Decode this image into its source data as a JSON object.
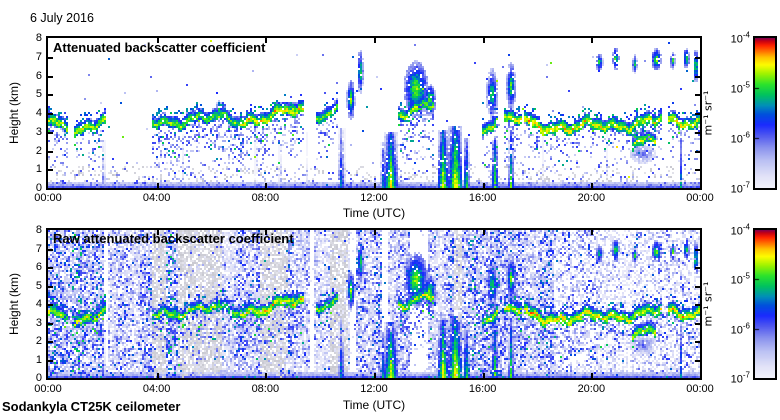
{
  "header": {
    "date_label": "6 July 2016"
  },
  "footer": {
    "instrument_label": "Sodankyla CT25K ceilometer"
  },
  "colors": {
    "axis": "#000000",
    "background": "#ffffff",
    "colormap_stops": [
      [
        0.0,
        "#f4f4fc"
      ],
      [
        0.08,
        "#e2e3f8"
      ],
      [
        0.18,
        "#bcc2f4"
      ],
      [
        0.27,
        "#8a92ee"
      ],
      [
        0.35,
        "#5058f0"
      ],
      [
        0.42,
        "#1b2bff"
      ],
      [
        0.49,
        "#0050dd"
      ],
      [
        0.55,
        "#0090b8"
      ],
      [
        0.62,
        "#00c35f"
      ],
      [
        0.69,
        "#2ce32c"
      ],
      [
        0.76,
        "#9ef300"
      ],
      [
        0.82,
        "#fdfd00"
      ],
      [
        0.87,
        "#ffc400"
      ],
      [
        0.91,
        "#ff7400"
      ],
      [
        0.95,
        "#ff2400"
      ],
      [
        0.98,
        "#c60014"
      ],
      [
        1.0,
        "#7a0055"
      ]
    ]
  },
  "chart_data": [
    {
      "type": "heatmap",
      "title": "Attenuated backscatter coefficient",
      "xlabel": "Time (UTC)",
      "ylabel": "Height (km)",
      "x_ticks": [
        "00:00",
        "04:00",
        "08:00",
        "12:00",
        "16:00",
        "20:00",
        "00:00"
      ],
      "x_tick_hours": [
        0,
        4,
        8,
        12,
        16,
        20,
        24
      ],
      "x_range_hours": [
        0,
        24
      ],
      "y_ticks": [
        0,
        1,
        2,
        3,
        4,
        5,
        6,
        7,
        8
      ],
      "ylim": [
        0,
        8
      ],
      "grid": false,
      "colorbar": {
        "scale": "log",
        "base": "10",
        "exponents": [
          "-4",
          "-5",
          "-6",
          "-7"
        ],
        "log_range": [
          -7,
          -4
        ],
        "unit": "m⁻¹ sr⁻¹",
        "position": "right"
      },
      "features": {
        "boundary_layer": {
          "solid_top_km": 0.32,
          "speckle_top_km": 1.6
        },
        "cloud_segments": [
          {
            "t0": 0.0,
            "t1": 0.75,
            "h0": 3.4,
            "h1": 2.9,
            "peak": -4.3,
            "virga": 2.6,
            "vp": 0.3
          },
          {
            "t0": 0.95,
            "t1": 2.15,
            "h0": 2.55,
            "h1": 3.85,
            "peak": -4.3,
            "virga": 2.4,
            "vp": 0.3
          },
          {
            "t0": 3.85,
            "t1": 5.2,
            "h0": 3.3,
            "h1": 3.6,
            "peak": -4.45,
            "virga": 2.8,
            "vp": 0.38
          },
          {
            "t0": 5.2,
            "t1": 7.1,
            "h0": 3.6,
            "h1": 3.45,
            "peak": -4.5,
            "virga": 2.9,
            "vp": 0.4
          },
          {
            "t0": 7.1,
            "t1": 9.45,
            "h0": 3.5,
            "h1": 3.95,
            "peak": -4.2,
            "virga": 3.0,
            "vp": 0.4
          },
          {
            "t0": 9.9,
            "t1": 10.7,
            "h0": 3.85,
            "h1": 4.15,
            "peak": -4.5,
            "virga": 2.2,
            "vp": 0.3
          },
          {
            "t0": 12.9,
            "t1": 14.2,
            "h0": 3.95,
            "h1": 4.25,
            "peak": -4.35,
            "virga": 3.2,
            "vp": 0.32
          },
          {
            "t0": 16.0,
            "t1": 16.6,
            "h0": 3.1,
            "h1": 3.4,
            "peak": -4.4,
            "virga": 2.6,
            "vp": 0.33
          },
          {
            "t0": 16.8,
            "t1": 17.45,
            "h0": 3.4,
            "h1": 3.5,
            "peak": -4.25,
            "virga": 2.9,
            "vp": 0.33
          },
          {
            "t0": 17.5,
            "t1": 19.3,
            "h0": 3.4,
            "h1": 3.0,
            "peak": -4.1,
            "virga": 2.3,
            "vp": 0.3
          },
          {
            "t0": 19.3,
            "t1": 21.1,
            "h0": 3.0,
            "h1": 3.3,
            "peak": -4.2,
            "virga": 2.1,
            "vp": 0.3
          },
          {
            "t0": 21.1,
            "t1": 22.6,
            "h0": 3.3,
            "h1": 3.4,
            "peak": -4.3,
            "virga": 1.9,
            "vp": 0.28
          },
          {
            "t0": 22.8,
            "t1": 24.0,
            "h0": 3.3,
            "h1": 3.5,
            "peak": -4.2,
            "virga": 2.1,
            "vp": 0.28
          },
          {
            "t0": 21.5,
            "t1": 22.4,
            "h0": 2.3,
            "h1": 2.35,
            "peak": -4.35,
            "virga": 0.0,
            "vp": 0.0
          }
        ],
        "precip_columns": [
          {
            "t": 2.05,
            "w": 0.14,
            "top": 2.6,
            "peak": -5.3
          },
          {
            "t": 4.95,
            "w": 0.1,
            "top": 4.2,
            "peak": -5.9
          },
          {
            "t": 7.65,
            "w": 0.1,
            "top": 3.5,
            "peak": -6.0
          },
          {
            "t": 8.55,
            "w": 0.14,
            "top": 2.3,
            "peak": -5.4
          },
          {
            "t": 9.55,
            "w": 0.08,
            "top": 3.0,
            "peak": -5.9
          },
          {
            "t": 10.8,
            "w": 0.28,
            "top": 3.2,
            "peak": -5.0
          },
          {
            "t": 12.35,
            "w": 0.22,
            "top": 2.5,
            "peak": -4.8
          },
          {
            "t": 12.62,
            "w": 0.5,
            "top": 3.0,
            "peak": -4.3
          },
          {
            "t": 14.55,
            "w": 0.4,
            "top": 3.1,
            "peak": -4.25
          },
          {
            "t": 15.0,
            "w": 0.55,
            "top": 3.3,
            "peak": -4.2
          },
          {
            "t": 15.4,
            "w": 0.22,
            "top": 2.7,
            "peak": -4.55
          },
          {
            "t": 16.45,
            "w": 0.28,
            "top": 2.6,
            "peak": -4.5
          },
          {
            "t": 17.05,
            "w": 0.2,
            "top": 3.2,
            "peak": -4.6
          },
          {
            "t": 18.2,
            "w": 0.08,
            "top": 3.0,
            "peak": -6.1
          },
          {
            "t": 20.6,
            "w": 0.08,
            "top": 3.1,
            "peak": -6.0
          },
          {
            "t": 23.3,
            "w": 0.12,
            "top": 2.9,
            "peak": -5.1
          }
        ],
        "blobs": [
          {
            "t": 6.3,
            "h": 4.15,
            "rt": 0.14,
            "rh": 0.5,
            "peak": -4.7
          },
          {
            "t": 9.0,
            "h": 4.2,
            "rt": 0.3,
            "rh": 0.4,
            "peak": -4.3
          },
          {
            "t": 11.15,
            "h": 4.7,
            "rt": 0.16,
            "rh": 1.1,
            "peak": -4.5
          },
          {
            "t": 11.5,
            "h": 6.2,
            "rt": 0.12,
            "rh": 1.2,
            "peak": -4.6
          },
          {
            "t": 13.55,
            "h": 5.3,
            "rt": 0.45,
            "rh": 1.5,
            "peak": -4.4
          },
          {
            "t": 14.05,
            "h": 4.7,
            "rt": 0.25,
            "rh": 0.9,
            "peak": -4.5
          },
          {
            "t": 16.35,
            "h": 5.0,
            "rt": 0.22,
            "rh": 1.4,
            "peak": -4.65
          },
          {
            "t": 17.05,
            "h": 5.4,
            "rt": 0.18,
            "rh": 1.3,
            "peak": -4.55
          },
          {
            "t": 20.3,
            "h": 6.7,
            "rt": 0.14,
            "rh": 0.5,
            "peak": -4.6
          },
          {
            "t": 20.9,
            "h": 6.9,
            "rt": 0.12,
            "rh": 0.6,
            "peak": -4.4
          },
          {
            "t": 21.6,
            "h": 6.6,
            "rt": 0.1,
            "rh": 0.5,
            "peak": -4.7
          },
          {
            "t": 22.4,
            "h": 6.85,
            "rt": 0.18,
            "rh": 0.6,
            "peak": -4.4
          },
          {
            "t": 23.0,
            "h": 6.8,
            "rt": 0.1,
            "rh": 0.5,
            "peak": -4.6
          },
          {
            "t": 23.5,
            "h": 6.9,
            "rt": 0.12,
            "rh": 0.55,
            "peak": -4.45
          },
          {
            "t": 23.85,
            "h": 6.5,
            "rt": 0.1,
            "rh": 0.9,
            "peak": -4.4
          },
          {
            "t": 21.9,
            "h": 1.8,
            "rt": 0.5,
            "rh": 0.5,
            "peak": -5.7,
            "soft": true
          }
        ]
      }
    },
    {
      "type": "heatmap",
      "title": "Raw attenuated backscatter coefficient",
      "xlabel": "Time (UTC)",
      "ylabel": "Height (km)",
      "x_ticks": [
        "00:00",
        "04:00",
        "08:00",
        "12:00",
        "16:00",
        "20:00",
        "00:00"
      ],
      "x_tick_hours": [
        0,
        4,
        8,
        12,
        16,
        20,
        24
      ],
      "x_range_hours": [
        0,
        24
      ],
      "y_ticks": [
        0,
        1,
        2,
        3,
        4,
        5,
        6,
        7,
        8
      ],
      "ylim": [
        0,
        8
      ],
      "grid": false,
      "colorbar": {
        "scale": "log",
        "base": "10",
        "exponents": [
          "-4",
          "-5",
          "-6",
          "-7"
        ],
        "log_range": [
          -7,
          -4
        ],
        "unit": "m⁻¹ sr⁻¹",
        "position": "right"
      },
      "features_same_as_panel": 0,
      "noise": {
        "density": 0.85,
        "stripes": [
          {
            "t": 2.15,
            "w": 0.15,
            "type": "white"
          },
          {
            "t": 4.1,
            "w": 0.5,
            "type": "grey"
          },
          {
            "t": 5.6,
            "w": 1.6,
            "type": "grey"
          },
          {
            "t": 8.3,
            "w": 1.0,
            "type": "grey"
          },
          {
            "t": 9.7,
            "w": 0.12,
            "type": "white"
          },
          {
            "t": 10.7,
            "w": 0.7,
            "type": "grey"
          },
          {
            "t": 11.25,
            "w": 0.2,
            "type": "white"
          },
          {
            "t": 12.42,
            "w": 0.22,
            "type": "white"
          },
          {
            "t": 13.65,
            "w": 0.62,
            "type": "white"
          },
          {
            "t": 15.1,
            "w": 0.3,
            "type": "grey"
          },
          {
            "t": 21.3,
            "w": 5.4,
            "type": "light"
          }
        ]
      }
    }
  ]
}
